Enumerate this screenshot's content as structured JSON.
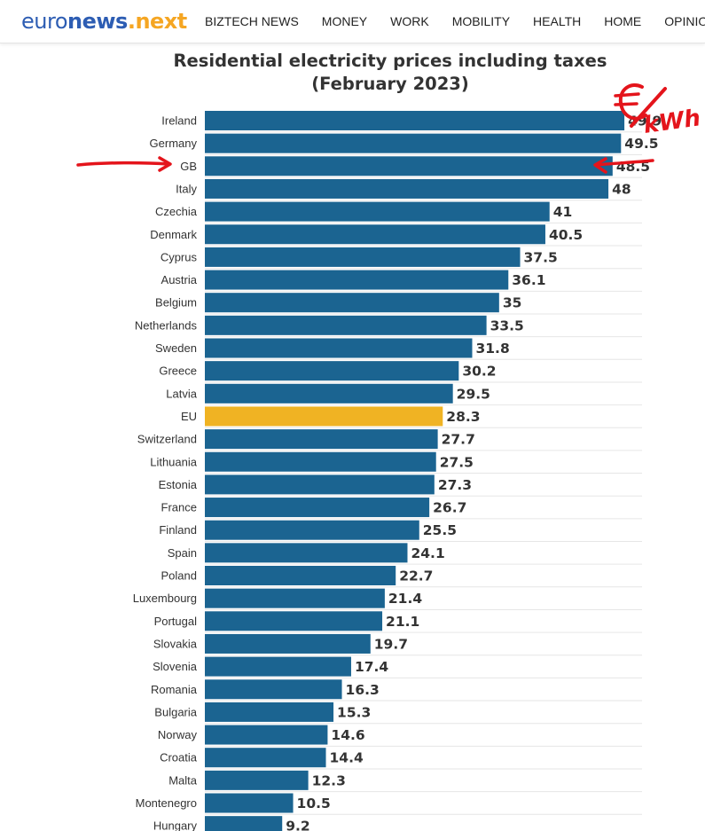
{
  "header": {
    "logo": {
      "part1": "euro",
      "part2": "news",
      "part3": ".next"
    },
    "nav": [
      "BIZTECH NEWS",
      "MONEY",
      "WORK",
      "MOBILITY",
      "HEALTH",
      "HOME",
      "OPINION"
    ]
  },
  "chart_data": {
    "type": "bar",
    "orientation": "horizontal",
    "title": "Residential electricity prices including taxes (February 2023)",
    "xlabel": "",
    "ylabel": "",
    "xlim": [
      0,
      52
    ],
    "grid": true,
    "categories": [
      "Ireland",
      "Germany",
      "GB",
      "Italy",
      "Czechia",
      "Denmark",
      "Cyprus",
      "Austria",
      "Belgium",
      "Netherlands",
      "Sweden",
      "Greece",
      "Latvia",
      "EU",
      "Switzerland",
      "Lithuania",
      "Estonia",
      "France",
      "Finland",
      "Spain",
      "Poland",
      "Luxembourg",
      "Portugal",
      "Slovakia",
      "Slovenia",
      "Romania",
      "Bulgaria",
      "Norway",
      "Croatia",
      "Malta",
      "Montenegro",
      "Hungary"
    ],
    "values": [
      49.9,
      49.5,
      48.5,
      48,
      41,
      40.5,
      37.5,
      36.1,
      35,
      33.5,
      31.8,
      30.2,
      29.5,
      28.3,
      27.7,
      27.5,
      27.3,
      26.7,
      25.5,
      24.1,
      22.7,
      21.4,
      21.1,
      19.7,
      17.4,
      16.3,
      15.3,
      14.6,
      14.4,
      12.3,
      10.5,
      9.2
    ],
    "value_labels": [
      "49.9",
      "49.5",
      "48.5",
      "48",
      "41",
      "40.5",
      "37.5",
      "36.1",
      "35",
      "33.5",
      "31.8",
      "30.2",
      "29.5",
      "28.3",
      "27.7",
      "27.5",
      "27.3",
      "26.7",
      "25.5",
      "24.1",
      "22.7",
      "21.4",
      "21.1",
      "19.7",
      "17.4",
      "16.3",
      "15.3",
      "14.6",
      "14.4",
      "12.3",
      "10.5",
      "9.2"
    ],
    "highlight": "EU",
    "colors": {
      "bar": "#1b6491",
      "highlight": "#f0b323",
      "label": "#333333",
      "grid": "#e6e6e6"
    }
  },
  "annotations": {
    "unit_text": "€/kWh",
    "arrow_color": "#e4141b",
    "marked_category": "GB"
  }
}
